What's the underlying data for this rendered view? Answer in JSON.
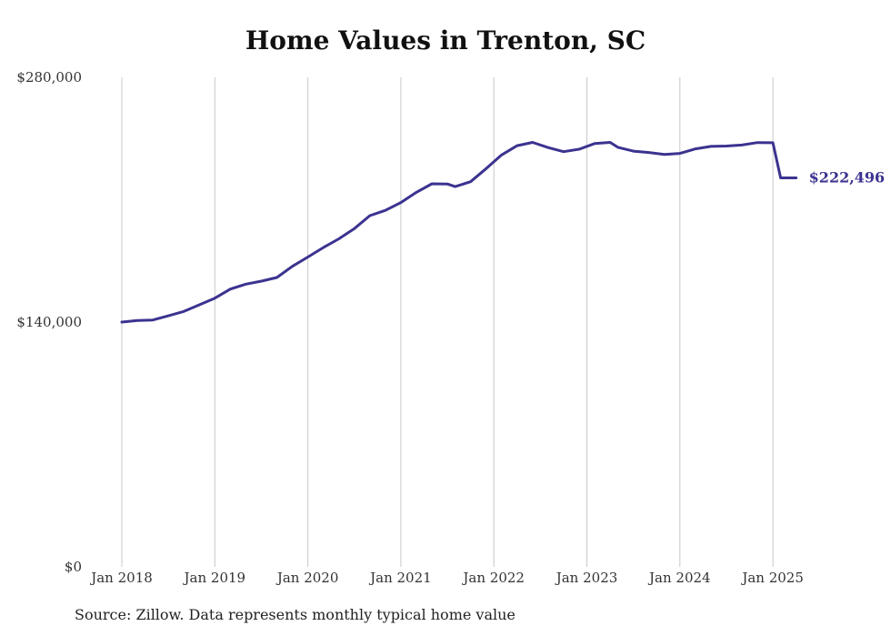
{
  "chart_data": {
    "type": "line",
    "title": "Home Values in Trenton, SC",
    "xlabel": "",
    "ylabel": "",
    "ylim": [
      0,
      280000
    ],
    "yticks": [
      0,
      140000,
      280000
    ],
    "ytick_labels": [
      "$0",
      "$140,000",
      "$280,000"
    ],
    "xticks": [
      "Jan 2018",
      "Jan 2019",
      "Jan 2020",
      "Jan 2021",
      "Jan 2022",
      "Jan 2023",
      "Jan 2024",
      "Jan 2025"
    ],
    "grid": "vertical",
    "line_color": "#3b3390",
    "end_label": "$222,496",
    "series": [
      {
        "x": [
          "2018-01",
          "2018-03",
          "2018-05",
          "2018-07",
          "2018-09",
          "2018-11",
          "2019-01",
          "2019-03",
          "2019-05",
          "2019-07",
          "2019-09",
          "2019-11",
          "2020-01",
          "2020-03",
          "2020-05",
          "2020-07",
          "2020-09",
          "2020-11",
          "2021-01",
          "2021-03",
          "2021-05",
          "2021-07",
          "2021-08",
          "2021-10",
          "2021-12",
          "2022-02",
          "2022-04",
          "2022-06",
          "2022-08",
          "2022-10",
          "2022-12",
          "2023-02",
          "2023-04",
          "2023-05",
          "2023-07",
          "2023-09",
          "2023-11",
          "2024-01",
          "2024-03",
          "2024-05",
          "2024-07",
          "2024-09",
          "2024-11",
          "2025-01",
          "2025-02",
          "2025-04"
        ],
        "values": [
          140000,
          140900,
          141200,
          143600,
          146100,
          149900,
          153700,
          158900,
          161700,
          163400,
          165500,
          171900,
          177200,
          182600,
          187600,
          193500,
          200900,
          203900,
          208400,
          214200,
          219100,
          219000,
          217500,
          220300,
          227800,
          235600,
          240900,
          242800,
          239800,
          237500,
          238900,
          242100,
          242800,
          240000,
          237800,
          237000,
          235900,
          236500,
          239100,
          240500,
          240700,
          241300,
          242700,
          242600,
          222496,
          222496
        ]
      }
    ]
  },
  "footer": {
    "source": "Source: Zillow. Data represents monthly typical home value"
  }
}
